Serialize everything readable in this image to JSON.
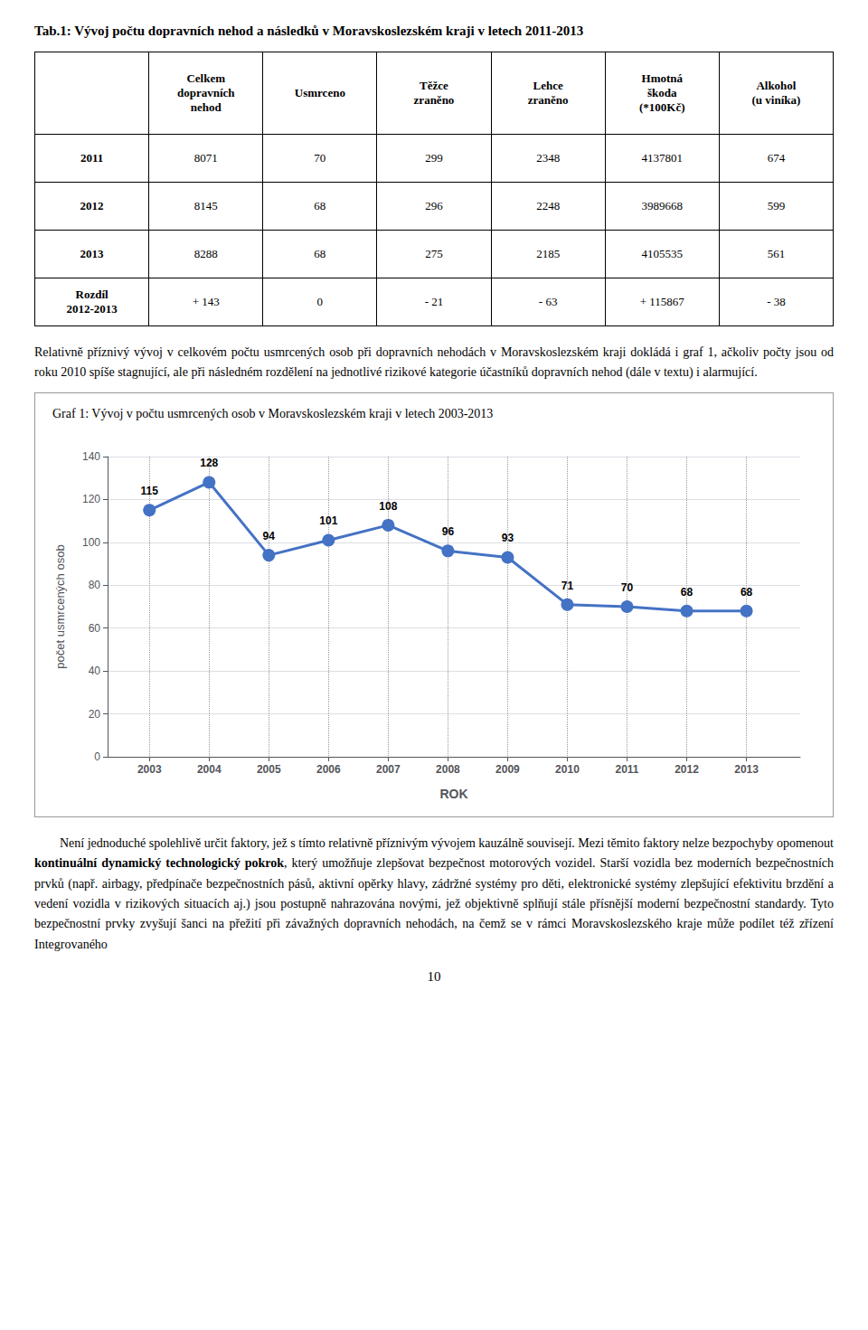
{
  "title": "Tab.1: Vývoj počtu dopravních nehod a následků v Moravskoslezském kraji v letech 2011-2013",
  "table": {
    "headers": [
      "",
      "Celkem\ndopravních\nnehod",
      "Usmrceno",
      "Těžce\nzraněno",
      "Lehce\nzraněno",
      "Hmotná\nškoda\n(*100Kč)",
      "Alkohol\n(u viníka)"
    ],
    "rows": [
      [
        "2011",
        "8071",
        "70",
        "299",
        "2348",
        "4137801",
        "674"
      ],
      [
        "2012",
        "8145",
        "68",
        "296",
        "2248",
        "3989668",
        "599"
      ],
      [
        "2013",
        "8288",
        "68",
        "275",
        "2185",
        "4105535",
        "561"
      ],
      [
        "Rozdíl\n2012-2013",
        "+ 143",
        "0",
        "- 21",
        "- 63",
        "+ 115867",
        "- 38"
      ]
    ]
  },
  "body_text_1": "Relativně příznivý vývoj v celkovém počtu usmrcených osob při dopravních nehodách v Moravskoslezském kraji dokládá i graf 1, ačkoliv počty jsou od roku 2010 spíše stagnující, ale při následném rozdělení na jednotlivé rizikové kategorie účastníků dopravních nehod (dále v textu) i alarmující.",
  "body_text_2": [
    {
      "text": "Není jednoduché spolehlivě určit faktory, jež s tímto relativně příznivým vývojem kauzálně souvisejí. Mezi těmito faktory nelze bezpochyby opomenout ",
      "bold": false
    },
    {
      "text": "kontinuální dynamický technologický pokrok",
      "bold": true
    },
    {
      "text": ", který umožňuje zlepšovat bezpečnost motorových vozidel. Starší vozidla bez moderních bezpečnostních prvků (např. airbagy, předpínače bezpečnostních pásů, aktivní opěrky hlavy, zádržné systémy pro děti, elektronické systémy zlepšující efektivitu brzdění a vedení vozidla v rizikových situacích aj.) jsou postupně nahrazována novými, jež objektivně splňují stále přísnější moderní bezpečnostní standardy. Tyto bezpečnostní prvky zvyšují šanci na přežití při závažných dopravních nehodách, na čemž se v rámci Moravskoslezského kraje může podílet též zřízení Integrovaného",
      "bold": false
    }
  ],
  "page_number": "10",
  "chart_data": {
    "type": "line",
    "title": "Graf 1: Vývoj v počtu usmrcených osob v Moravskoslezském kraji v letech 2003-2013",
    "x": [
      2003,
      2004,
      2005,
      2006,
      2007,
      2008,
      2009,
      2010,
      2011,
      2012,
      2013
    ],
    "values": [
      115,
      128,
      94,
      101,
      108,
      96,
      93,
      71,
      70,
      68,
      68
    ],
    "xlabel": "ROK",
    "ylabel": "počet usmrcených osob",
    "xlim": [
      2002.3,
      2013.9
    ],
    "xticks": [
      2003,
      2004,
      2005,
      2006,
      2007,
      2008,
      2009,
      2010,
      2011,
      2012,
      2013
    ],
    "ylim": [
      0,
      140
    ],
    "yticks": [
      0,
      20,
      40,
      60,
      80,
      100,
      120,
      140
    ],
    "color": "#4472C4",
    "marker": "circle",
    "grid": true,
    "data_labels": true
  }
}
